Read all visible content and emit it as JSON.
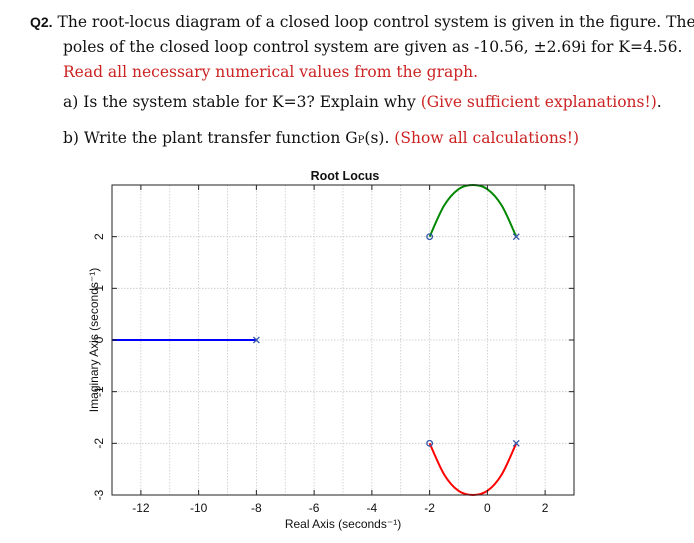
{
  "question": {
    "label": "Q2.",
    "line1": "The root-locus diagram of a closed loop control system is given in the figure. The",
    "line2": "poles of the closed loop control system are given as -10.56,  ±2.69i for K=4.56.",
    "line3": "Read all necessary numerical values from the graph."
  },
  "part_a": {
    "text": "a) Is the system stable for K=3? Explain why ",
    "note": "(Give sufficient explanations!)",
    "end": "."
  },
  "part_b": {
    "text": "b) Write the plant transfer function G",
    "subscript": "P",
    "text2": "(s). ",
    "note": "(Show all calculations!)"
  },
  "colors": {
    "accent_red": "#cc2222",
    "branch_blue": "#0000ff",
    "branch_green": "#008800",
    "branch_red": "#ff0000"
  },
  "chart_data": {
    "type": "line",
    "title": "Root Locus",
    "xlabel": "Real Axis (seconds⁻¹)",
    "ylabel": "Imaginary Axis (seconds⁻¹)",
    "xlim": [
      -13,
      3
    ],
    "ylim": [
      -3,
      3
    ],
    "xticks": [
      -12,
      -10,
      -8,
      -6,
      -4,
      -2,
      0,
      2
    ],
    "yticks": [
      -3,
      -2,
      -1,
      0,
      1,
      2
    ],
    "xtick_labels": [
      "-12",
      "-10",
      "-8",
      "-6",
      "-4",
      "-2",
      "0",
      "2"
    ],
    "ytick_labels": [
      "-3",
      "-2",
      "-1",
      "0",
      "1",
      "2"
    ],
    "grid": true,
    "series": [
      {
        "color": "#0000ff",
        "x": [
          -13,
          -8
        ],
        "y": [
          0,
          0
        ],
        "start_marker": "none",
        "end_marker": "x"
      },
      {
        "color": "#008800",
        "x": [
          -2,
          -1.5,
          -1,
          -0.5,
          0,
          0.5,
          1
        ],
        "y": [
          2,
          2.6,
          2.92,
          3.0,
          2.92,
          2.6,
          2
        ],
        "start_marker": "o",
        "end_marker": "x"
      },
      {
        "color": "#ff0000",
        "x": [
          -2,
          -1.5,
          -1,
          -0.5,
          0,
          0.5,
          1
        ],
        "y": [
          -2,
          -2.6,
          -2.92,
          -3.0,
          -2.92,
          -2.6,
          -2
        ],
        "start_marker": "o",
        "end_marker": "x"
      }
    ]
  }
}
